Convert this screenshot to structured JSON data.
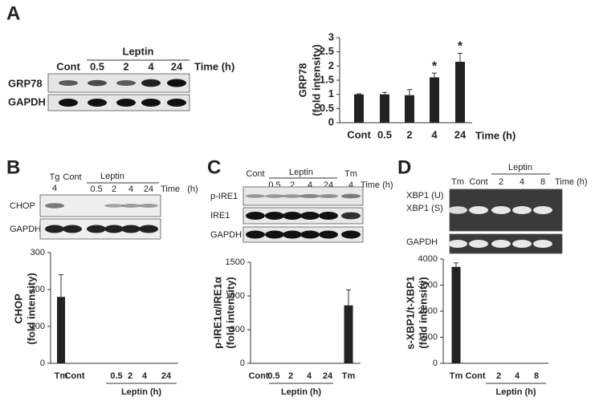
{
  "panels": [
    "A",
    "B",
    "C",
    "D"
  ],
  "blots": [
    {
      "group": "Leptin",
      "lane_labels": [
        "Cont",
        "0.5",
        "2",
        "4",
        "24"
      ],
      "time": "Time (h)",
      "rows": [
        "GRP78",
        "GAPDH"
      ]
    },
    {
      "group": "Leptin",
      "lane_labels": [
        "Tg",
        "4",
        "Cont",
        "0.5",
        "2",
        "4",
        "24"
      ],
      "time": "Time   (h)",
      "rows": [
        "CHOP",
        "GAPDH"
      ]
    },
    {
      "group": "Leptin",
      "lane_labels": [
        "Cont",
        "0.5",
        "2",
        "4",
        "24",
        "Tm",
        "4"
      ],
      "time": "Time (h)",
      "rows": [
        "p-IRE1",
        "IRE1",
        "GAPDH"
      ]
    },
    {
      "group": "Leptin",
      "lane_labels": [
        "Tm",
        "Cont",
        "2",
        "4",
        "8"
      ],
      "time": "Time (h)",
      "rows": [
        "XBP1 (U)",
        "XBP1 (S)",
        "GAPDH"
      ]
    }
  ],
  "chart_data": [
    {
      "type": "bar",
      "ylabel": [
        "GRP78",
        "(fold intensity)"
      ],
      "xlabel": "Time (h)",
      "categories": [
        "Cont",
        "0.5",
        "2",
        "4",
        "24"
      ],
      "values": [
        1,
        1,
        0.97,
        1.6,
        2.15
      ],
      "errors": [
        0.02,
        0.07,
        0.2,
        0.15,
        0.3
      ],
      "annotations": [
        null,
        null,
        null,
        "*",
        "*"
      ],
      "color": "#222222",
      "ylim": [
        0,
        3
      ],
      "yticks": [
        0,
        0.5,
        1,
        1.5,
        2,
        2.5,
        3
      ]
    },
    {
      "type": "bar",
      "ylabel": [
        "CHOP",
        "(fold intensity)"
      ],
      "group_label": "Leptin (h)",
      "categories": [
        "Tm",
        "Cont",
        "0.5",
        "2",
        "4",
        "24"
      ],
      "values": [
        180,
        0,
        0,
        0,
        0,
        0
      ],
      "errors": [
        60,
        0,
        0,
        0,
        0,
        0
      ],
      "color": "#222222",
      "ylim": [
        0,
        300
      ],
      "yticks": [
        0,
        100,
        200,
        300
      ]
    },
    {
      "type": "bar",
      "ylabel": [
        "p-IRE1α/IRE1α",
        "(fold intensity)"
      ],
      "group_label": "Leptin (h)",
      "categories": [
        "Cont",
        "0.5",
        "2",
        "4",
        "24",
        "Tm"
      ],
      "values": [
        0,
        0,
        0,
        0,
        0,
        860
      ],
      "errors": [
        0,
        0,
        0,
        0,
        0,
        230
      ],
      "color": "#222222",
      "ylim": [
        0,
        1500
      ],
      "yticks": [
        0,
        500,
        1000,
        1500
      ]
    },
    {
      "type": "bar",
      "ylabel": [
        "s-XBP1/t-XBP1",
        "(fold intensity)"
      ],
      "group_label": "Leptin (h)",
      "categories": [
        "Tm",
        "Cont",
        "2",
        "4",
        "8"
      ],
      "values": [
        3700,
        0,
        0,
        0,
        0
      ],
      "errors": [
        150,
        0,
        0,
        0,
        0
      ],
      "color": "#222222",
      "ylim": [
        0,
        4000
      ],
      "yticks": [
        0,
        1000,
        2000,
        3000,
        4000
      ]
    }
  ]
}
